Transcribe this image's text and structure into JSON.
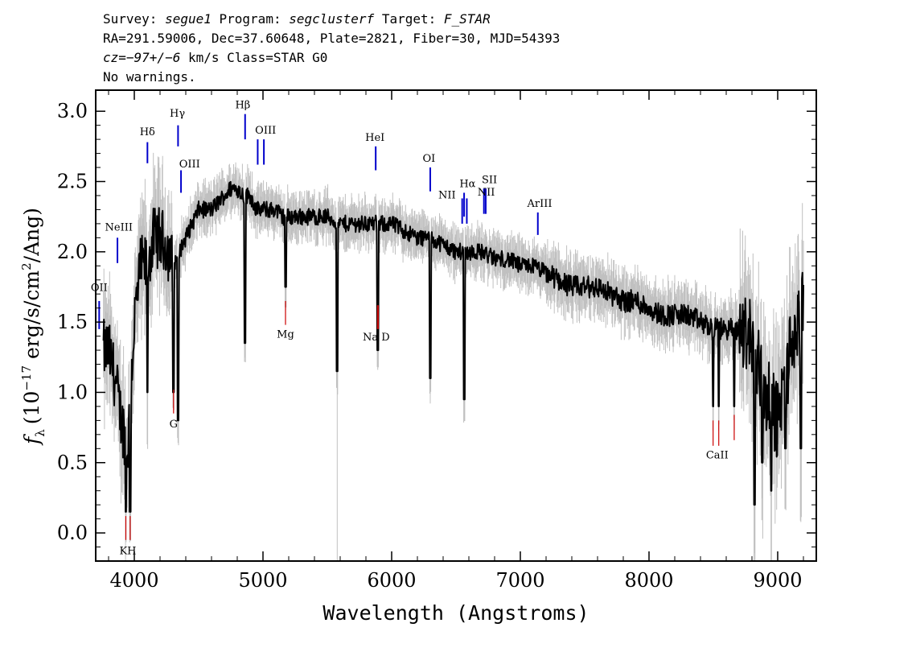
{
  "header": {
    "line1": {
      "survey_label": "Survey:",
      "survey": "segue1",
      "program_label": "Program:",
      "program": "segclusterf",
      "target_label": "Target:",
      "target": "F_STAR"
    },
    "line2": "RA=291.59006, Dec=37.60648, Plate=2821, Fiber=30, MJD=54393",
    "line3": {
      "cz": "cz=−97+/−6",
      "rest": " km/s Class=STAR G0"
    },
    "line4": "No warnings."
  },
  "chart_data": {
    "type": "line",
    "title": "",
    "xlabel": "Wavelength (Angstroms)",
    "ylabel": "f_λ (10^-17 erg/s/cm^2/Ang)",
    "ylabel_parts": {
      "f": "f",
      "lambda": "λ",
      "open": "(10",
      "exp1": "−17",
      "mid": " erg/s/cm",
      "exp2": "2",
      "close": "/Ang)"
    },
    "xlim": [
      3700,
      9300
    ],
    "ylim": [
      -0.2,
      3.15
    ],
    "x_ticks": [
      4000,
      5000,
      6000,
      7000,
      8000,
      9000
    ],
    "y_ticks": [
      0.0,
      0.5,
      1.0,
      1.5,
      2.0,
      2.5,
      3.0
    ],
    "y_tick_labels": [
      "0.0",
      "0.5",
      "1.0",
      "1.5",
      "2.0",
      "2.5",
      "3.0"
    ],
    "colors": {
      "flux": "#000000",
      "error_band": "#c0c0c0",
      "emission": "#0000cc",
      "absorption": "#cc0000"
    },
    "series": [
      {
        "role": "flux",
        "x": [
          3800,
          3850,
          3900,
          3950,
          4000,
          4050,
          4100,
          4150,
          4200,
          4250,
          4300,
          4350,
          4400,
          4450,
          4500,
          4550,
          4600,
          4650,
          4700,
          4750,
          4800,
          4850,
          4900,
          4950,
          5000,
          5050,
          5100,
          5150,
          5200,
          5300,
          5400,
          5500,
          5600,
          5700,
          5800,
          5900,
          6000,
          6100,
          6200,
          6300,
          6400,
          6500,
          6600,
          6700,
          6800,
          6900,
          7000,
          7100,
          7200,
          7300,
          7400,
          7500,
          7600,
          7700,
          7800,
          7900,
          8000,
          8100,
          8200,
          8300,
          8400,
          8500,
          8600,
          8700,
          8800,
          8900,
          9000,
          9100,
          9200
        ],
        "y": [
          1.3,
          1.1,
          0.8,
          0.6,
          1.5,
          1.9,
          1.9,
          2.1,
          2.1,
          2.05,
          1.9,
          2.0,
          2.1,
          2.2,
          2.3,
          2.3,
          2.3,
          2.35,
          2.4,
          2.45,
          2.45,
          2.4,
          2.4,
          2.3,
          2.3,
          2.3,
          2.3,
          2.25,
          2.25,
          2.25,
          2.25,
          2.25,
          2.2,
          2.2,
          2.2,
          2.2,
          2.2,
          2.15,
          2.1,
          2.1,
          2.05,
          2.0,
          2.0,
          2.0,
          1.95,
          1.95,
          1.9,
          1.9,
          1.85,
          1.8,
          1.75,
          1.75,
          1.75,
          1.7,
          1.65,
          1.65,
          1.6,
          1.55,
          1.55,
          1.55,
          1.5,
          1.45,
          1.45,
          1.45,
          1.4,
          1.0,
          0.8,
          1.3,
          1.6
        ]
      }
    ],
    "absorption_dips": [
      {
        "x": 3934,
        "y": 0.15
      },
      {
        "x": 3968,
        "y": 0.15
      },
      {
        "x": 4102,
        "y": 1.0
      },
      {
        "x": 4305,
        "y": 1.0
      },
      {
        "x": 4340,
        "y": 0.8
      },
      {
        "x": 4861,
        "y": 1.35
      },
      {
        "x": 5175,
        "y": 1.75
      },
      {
        "x": 5577,
        "y": 1.15
      },
      {
        "x": 5892,
        "y": 1.3
      },
      {
        "x": 6300,
        "y": 1.1
      },
      {
        "x": 6563,
        "y": 0.95
      },
      {
        "x": 8498,
        "y": 0.9
      },
      {
        "x": 8542,
        "y": 0.9
      },
      {
        "x": 8662,
        "y": 0.9
      },
      {
        "x": 8820,
        "y": 0.2
      },
      {
        "x": 8880,
        "y": 0.5
      },
      {
        "x": 8950,
        "y": 0.3
      },
      {
        "x": 9060,
        "y": 0.6
      },
      {
        "x": 9180,
        "y": 0.6
      }
    ],
    "lines": [
      {
        "label": "OII",
        "x": 3727,
        "y_from": 1.45,
        "y_to": 1.65,
        "kind": "emission"
      },
      {
        "label": "NeIII",
        "x": 3869,
        "y_from": 1.92,
        "y_to": 2.1,
        "kind": "emission"
      },
      {
        "label": "Hδ",
        "x": 4102,
        "y_from": 2.63,
        "y_to": 2.78,
        "kind": "emission"
      },
      {
        "label": "Hγ",
        "x": 4340,
        "y_from": 2.75,
        "y_to": 2.9,
        "kind": "emission"
      },
      {
        "label": "OIII",
        "x": 4363,
        "y_from": 2.42,
        "y_to": 2.58,
        "kind": "emission"
      },
      {
        "label": "Hβ",
        "x": 4861,
        "y_from": 2.8,
        "y_to": 2.98,
        "kind": "emission"
      },
      {
        "label": "OIII",
        "x": 4959,
        "y_from": 2.62,
        "y_to": 2.8,
        "kind": "emission"
      },
      {
        "label": "",
        "x": 5007,
        "y_from": 2.62,
        "y_to": 2.8,
        "kind": "emission"
      },
      {
        "label": "HeI",
        "x": 5876,
        "y_from": 2.58,
        "y_to": 2.75,
        "kind": "emission"
      },
      {
        "label": "OI",
        "x": 6300,
        "y_from": 2.43,
        "y_to": 2.6,
        "kind": "emission"
      },
      {
        "label": "NII",
        "x": 6548,
        "y_from": 2.2,
        "y_to": 2.38,
        "kind": "emission"
      },
      {
        "label": "Hα",
        "x": 6563,
        "y_from": 2.25,
        "y_to": 2.42,
        "kind": "emission"
      },
      {
        "label": "",
        "x": 6584,
        "y_from": 2.2,
        "y_to": 2.38,
        "kind": "emission"
      },
      {
        "label": "SII",
        "x": 6717,
        "y_from": 2.27,
        "y_to": 2.45,
        "kind": "emission"
      },
      {
        "label": "",
        "x": 6731,
        "y_from": 2.27,
        "y_to": 2.45,
        "kind": "emission"
      },
      {
        "label": "ArIII",
        "x": 7136,
        "y_from": 2.12,
        "y_to": 2.28,
        "kind": "emission"
      },
      {
        "label": "K",
        "x": 3934,
        "y_from": -0.05,
        "y_to": 0.12,
        "kind": "absorption"
      },
      {
        "label": "H",
        "x": 3968,
        "y_from": -0.05,
        "y_to": 0.12,
        "kind": "absorption"
      },
      {
        "label": "G",
        "x": 4305,
        "y_from": 0.85,
        "y_to": 1.02,
        "kind": "absorption"
      },
      {
        "label": "Mg",
        "x": 5175,
        "y_from": 1.48,
        "y_to": 1.65,
        "kind": "absorption"
      },
      {
        "label": "Na",
        "x": 5890,
        "y_from": 1.45,
        "y_to": 1.62,
        "kind": "absorption"
      },
      {
        "label": "D",
        "x": 5896,
        "y_from": 1.45,
        "y_to": 1.62,
        "kind": "absorption"
      },
      {
        "label": "CaII",
        "x": 8498,
        "y_from": 0.62,
        "y_to": 0.8,
        "kind": "absorption"
      },
      {
        "label": "",
        "x": 8542,
        "y_from": 0.62,
        "y_to": 0.8,
        "kind": "absorption"
      },
      {
        "label": "",
        "x": 8662,
        "y_from": 0.66,
        "y_to": 0.84,
        "kind": "absorption"
      }
    ],
    "line_labels": [
      {
        "text": "OII",
        "x": 3727,
        "y": 1.72,
        "kind": "emission"
      },
      {
        "text": "NeIII",
        "x": 3880,
        "y": 2.15,
        "kind": "emission"
      },
      {
        "text": "Hδ",
        "x": 4102,
        "y": 2.83,
        "kind": "emission"
      },
      {
        "text": "Hγ",
        "x": 4335,
        "y": 2.96,
        "kind": "emission"
      },
      {
        "text": "OIII",
        "x": 4430,
        "y": 2.6,
        "kind": "emission"
      },
      {
        "text": "Hβ",
        "x": 4843,
        "y": 3.02,
        "kind": "emission"
      },
      {
        "text": "OIII",
        "x": 5020,
        "y": 2.84,
        "kind": "emission"
      },
      {
        "text": "HeI",
        "x": 5870,
        "y": 2.79,
        "kind": "emission"
      },
      {
        "text": "OI",
        "x": 6290,
        "y": 2.64,
        "kind": "emission"
      },
      {
        "text": "NII",
        "x": 6430,
        "y": 2.38,
        "kind": "emission"
      },
      {
        "text": "Hα",
        "x": 6590,
        "y": 2.46,
        "kind": "emission"
      },
      {
        "text": "NII",
        "x": 6735,
        "y": 2.4,
        "kind": "emission"
      },
      {
        "text": "SII",
        "x": 6760,
        "y": 2.49,
        "kind": "emission"
      },
      {
        "text": "ArIII",
        "x": 7150,
        "y": 2.32,
        "kind": "emission"
      },
      {
        "text": "KH",
        "x": 3950,
        "y": -0.15,
        "kind": "absorption"
      },
      {
        "text": "G",
        "x": 4305,
        "y": 0.75,
        "kind": "absorption"
      },
      {
        "text": "Mg",
        "x": 5175,
        "y": 1.39,
        "kind": "absorption"
      },
      {
        "text": "Na  D",
        "x": 5880,
        "y": 1.37,
        "kind": "absorption"
      },
      {
        "text": "CaII",
        "x": 8530,
        "y": 0.53,
        "kind": "absorption"
      }
    ]
  }
}
